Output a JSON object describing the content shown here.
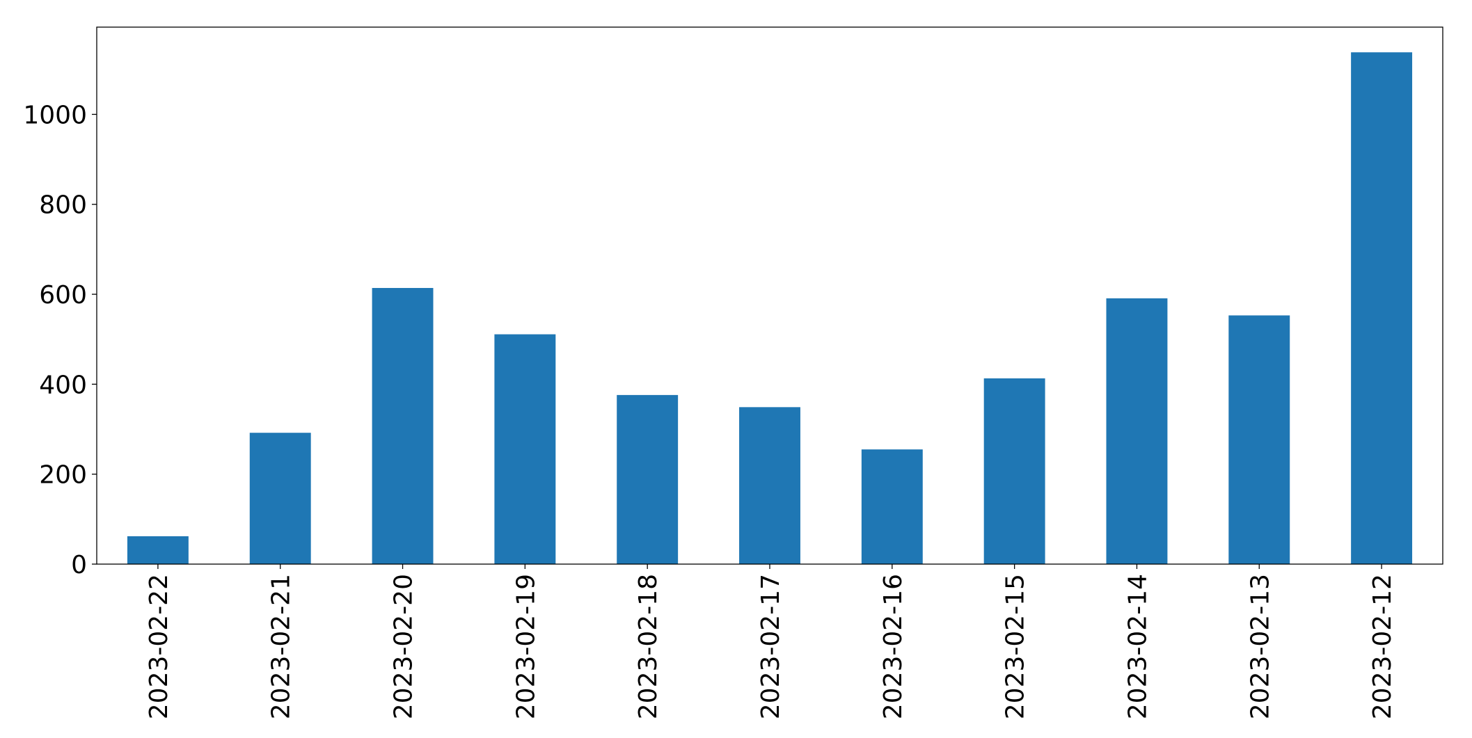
{
  "chart_data": {
    "type": "bar",
    "categories": [
      "2023-02-22",
      "2023-02-21",
      "2023-02-20",
      "2023-02-19",
      "2023-02-18",
      "2023-02-17",
      "2023-02-16",
      "2023-02-15",
      "2023-02-14",
      "2023-02-13",
      "2023-02-12"
    ],
    "values": [
      62,
      292,
      614,
      511,
      376,
      349,
      255,
      413,
      591,
      553,
      1138
    ],
    "color": "#1f77b4",
    "ylim": [
      0,
      1194
    ],
    "yticks": [
      0,
      200,
      400,
      600,
      800,
      1000
    ],
    "grid": false
  }
}
